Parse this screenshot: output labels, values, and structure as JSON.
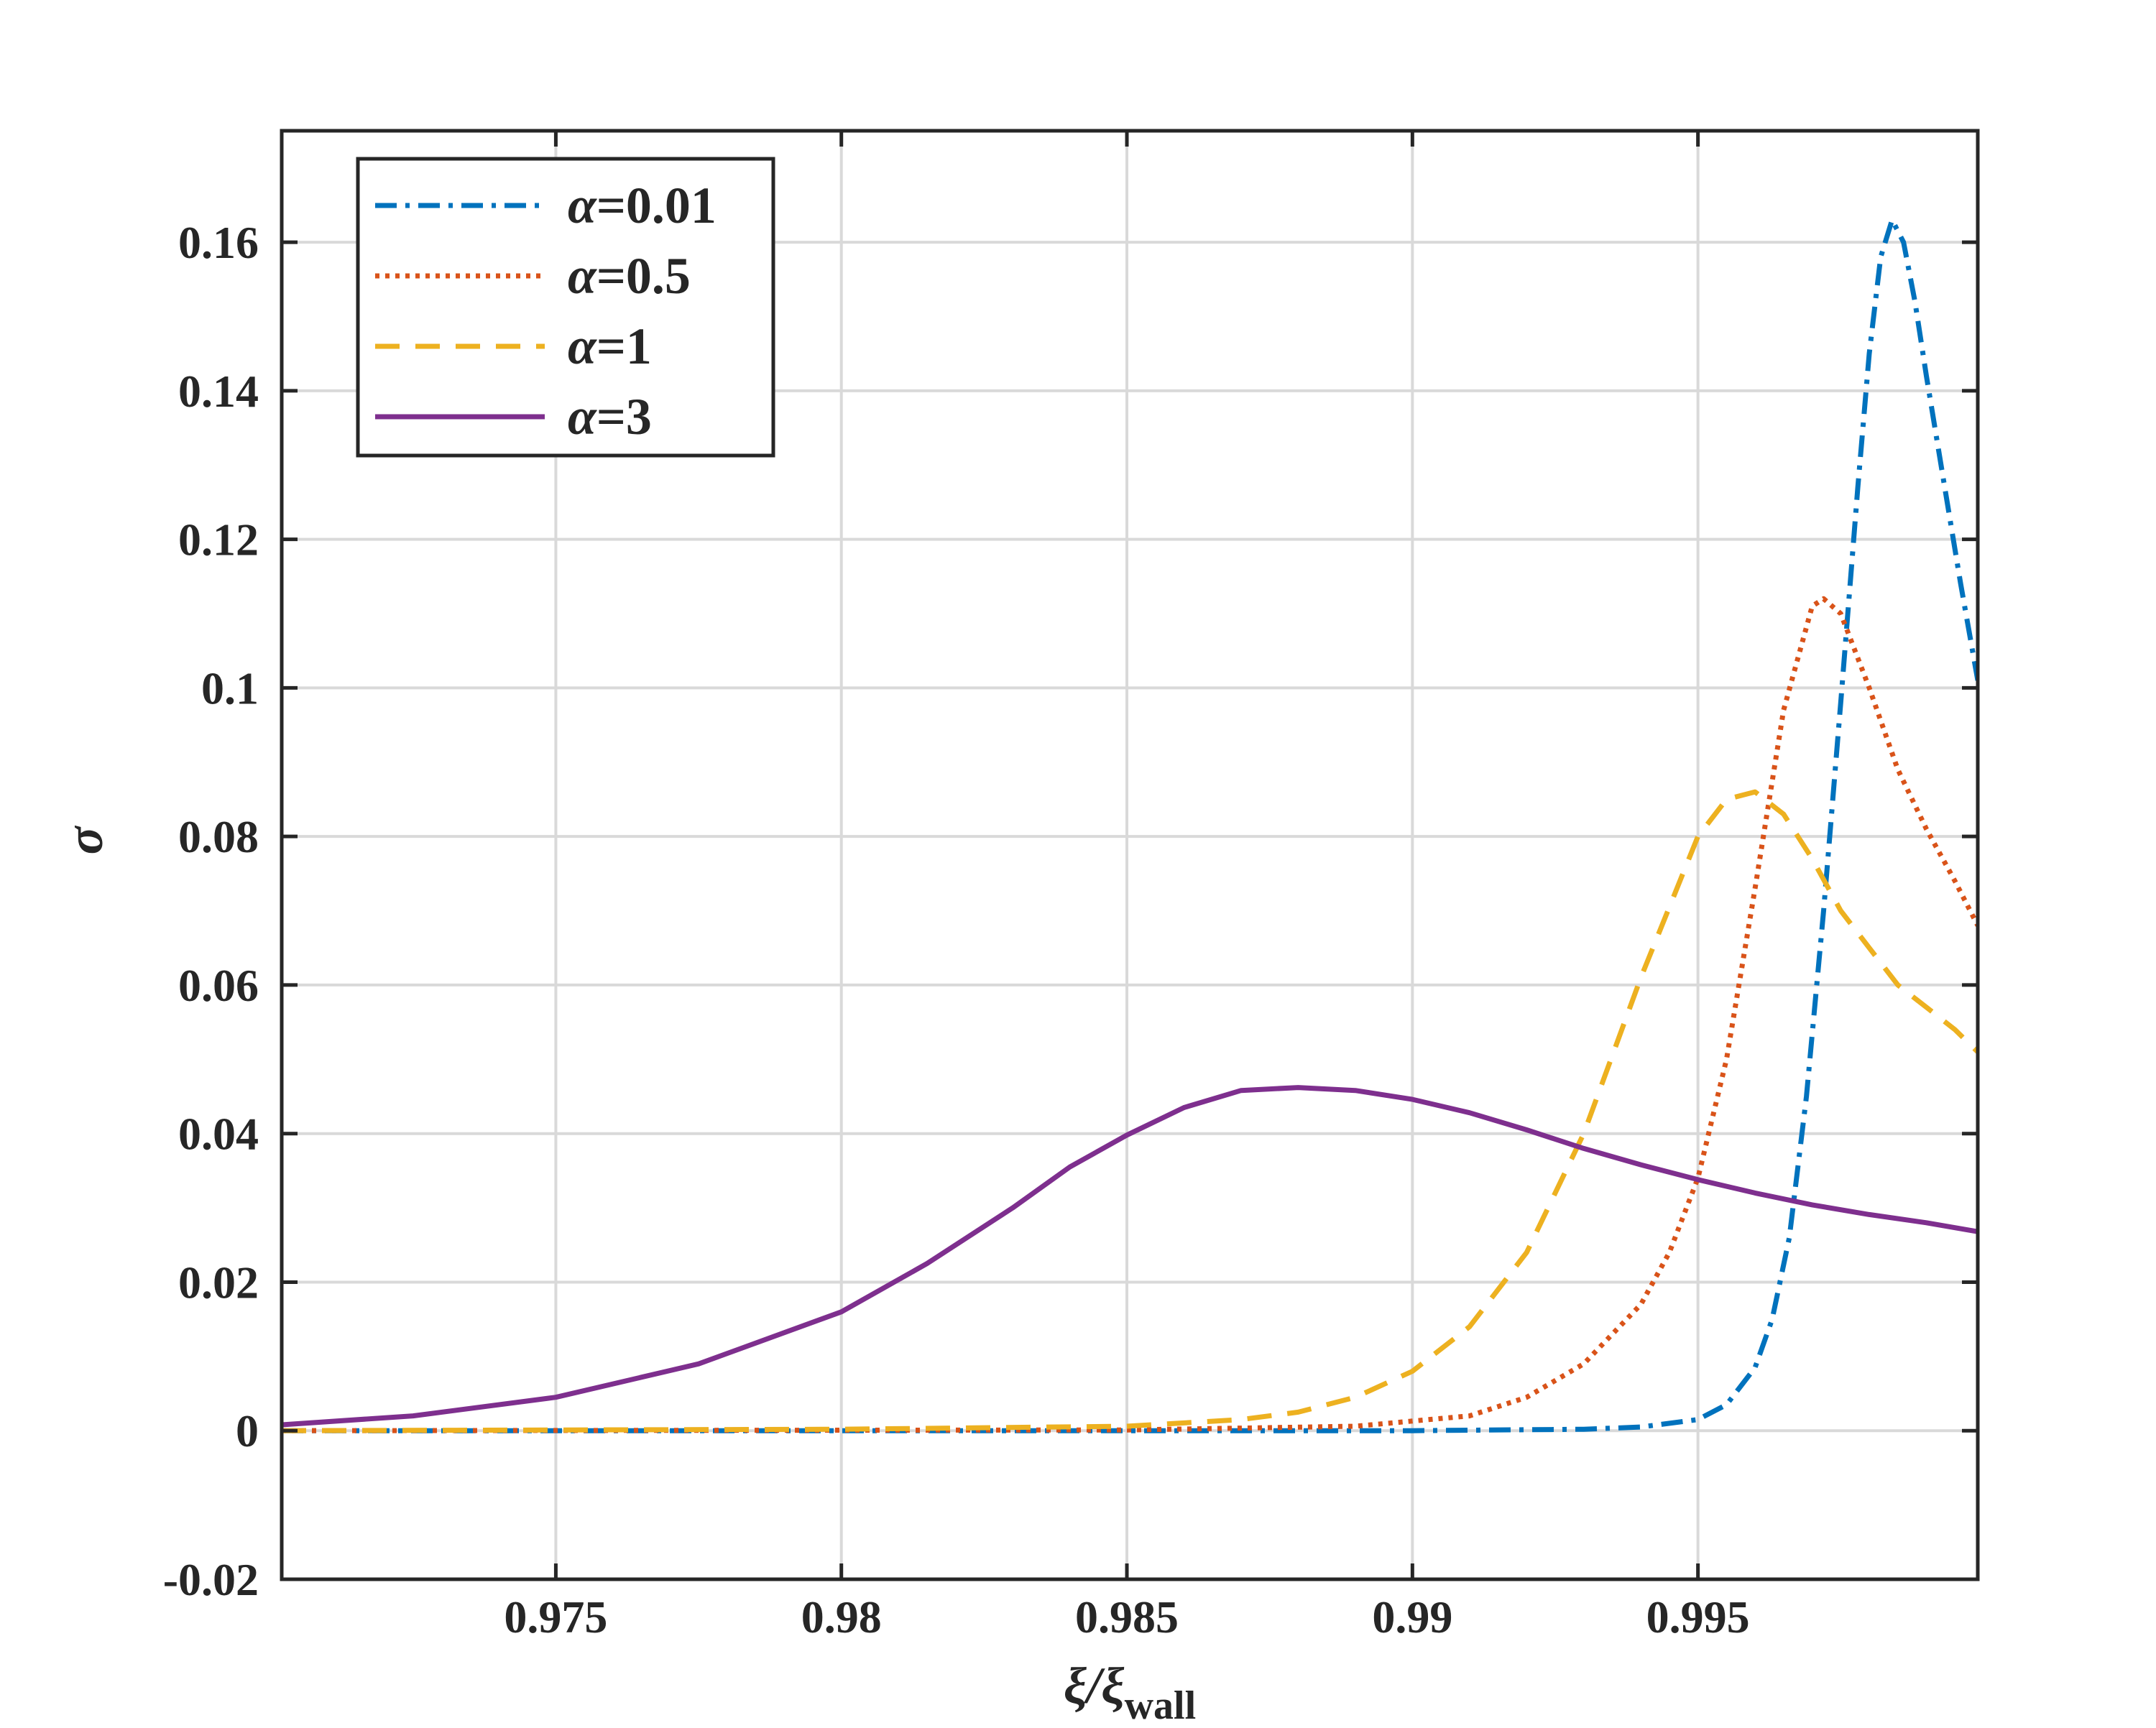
{
  "chart_data": {
    "type": "line",
    "title": "",
    "xlabel": "ξ/ξ",
    "xlabel_sub": "wall",
    "ylabel": "σ",
    "xlim": [
      0.9702,
      0.9999
    ],
    "ylim": [
      -0.02,
      0.175
    ],
    "grid": true,
    "legend_placement": "top-left",
    "x_ticks": [
      0.975,
      0.98,
      0.985,
      0.99,
      0.995
    ],
    "x_tick_labels": [
      "0.975",
      "0.98",
      "0.985",
      "0.99",
      "0.995"
    ],
    "y_ticks": [
      -0.02,
      0,
      0.02,
      0.04,
      0.06,
      0.08,
      0.1,
      0.12,
      0.14,
      0.16
    ],
    "y_tick_labels": [
      "-0.02",
      "0",
      "0.02",
      "0.04",
      "0.06",
      "0.08",
      "0.1",
      "0.12",
      "0.14",
      "0.16"
    ],
    "colors": {
      "axis": "#262626",
      "grid": "#d9d9d9",
      "series": [
        "#0072BD",
        "#D95319",
        "#EDB120",
        "#7E2F8E"
      ]
    },
    "series": [
      {
        "name": "α=0.01",
        "legend_symbol": "α",
        "legend_value": "=0.01",
        "style": "dashdot",
        "color": "#0072BD",
        "x": [
          0.9702,
          0.985,
          0.99,
          0.993,
          0.994,
          0.995,
          0.9955,
          0.996,
          0.9963,
          0.9966,
          0.9969,
          0.9972,
          0.9975,
          0.9978,
          0.998,
          0.9982,
          0.9984,
          0.9986,
          0.9988,
          0.999,
          0.9993,
          0.9996,
          0.9999
        ],
        "y": [
          0,
          0,
          0,
          0.0002,
          0.0005,
          0.0015,
          0.0035,
          0.0085,
          0.015,
          0.026,
          0.045,
          0.07,
          0.098,
          0.127,
          0.145,
          0.158,
          0.163,
          0.16,
          0.152,
          0.142,
          0.128,
          0.114,
          0.101
        ]
      },
      {
        "name": "α=0.5",
        "legend_symbol": "α",
        "legend_value": "=0.5",
        "style": "dotted",
        "color": "#D95319",
        "x": [
          0.9702,
          0.985,
          0.989,
          0.991,
          0.992,
          0.993,
          0.994,
          0.9945,
          0.995,
          0.9955,
          0.996,
          0.9965,
          0.997,
          0.9972,
          0.9975,
          0.998,
          0.9985,
          0.999,
          0.9995,
          0.9999
        ],
        "y": [
          0,
          0.0001,
          0.0006,
          0.002,
          0.0045,
          0.009,
          0.017,
          0.024,
          0.034,
          0.05,
          0.073,
          0.097,
          0.111,
          0.112,
          0.11,
          0.1,
          0.089,
          0.081,
          0.074,
          0.068
        ]
      },
      {
        "name": "α=1",
        "legend_symbol": "α",
        "legend_value": "=1",
        "style": "dashed",
        "color": "#EDB120",
        "x": [
          0.9702,
          0.98,
          0.985,
          0.987,
          0.988,
          0.989,
          0.99,
          0.991,
          0.992,
          0.993,
          0.994,
          0.995,
          0.9955,
          0.996,
          0.9965,
          0.997,
          0.9975,
          0.998,
          0.9985,
          0.999,
          0.9995,
          0.9999
        ],
        "y": [
          0,
          0.0002,
          0.0006,
          0.0015,
          0.0025,
          0.0045,
          0.008,
          0.014,
          0.024,
          0.04,
          0.061,
          0.08,
          0.085,
          0.086,
          0.083,
          0.077,
          0.07,
          0.065,
          0.06,
          0.057,
          0.054,
          0.051
        ]
      },
      {
        "name": "α=3",
        "legend_symbol": "α",
        "legend_value": "=3",
        "style": "solid",
        "color": "#7E2F8E",
        "x": [
          0.9702,
          0.9725,
          0.975,
          0.9775,
          0.98,
          0.9815,
          0.983,
          0.984,
          0.985,
          0.986,
          0.987,
          0.988,
          0.989,
          0.99,
          0.991,
          0.992,
          0.993,
          0.994,
          0.995,
          0.996,
          0.997,
          0.998,
          0.999,
          0.9999
        ],
        "y": [
          0.0008,
          0.002,
          0.0045,
          0.009,
          0.016,
          0.0225,
          0.03,
          0.0355,
          0.0398,
          0.0435,
          0.0458,
          0.0462,
          0.0458,
          0.0446,
          0.0428,
          0.0405,
          0.038,
          0.0358,
          0.0338,
          0.032,
          0.0304,
          0.0291,
          0.028,
          0.0268
        ]
      }
    ]
  }
}
